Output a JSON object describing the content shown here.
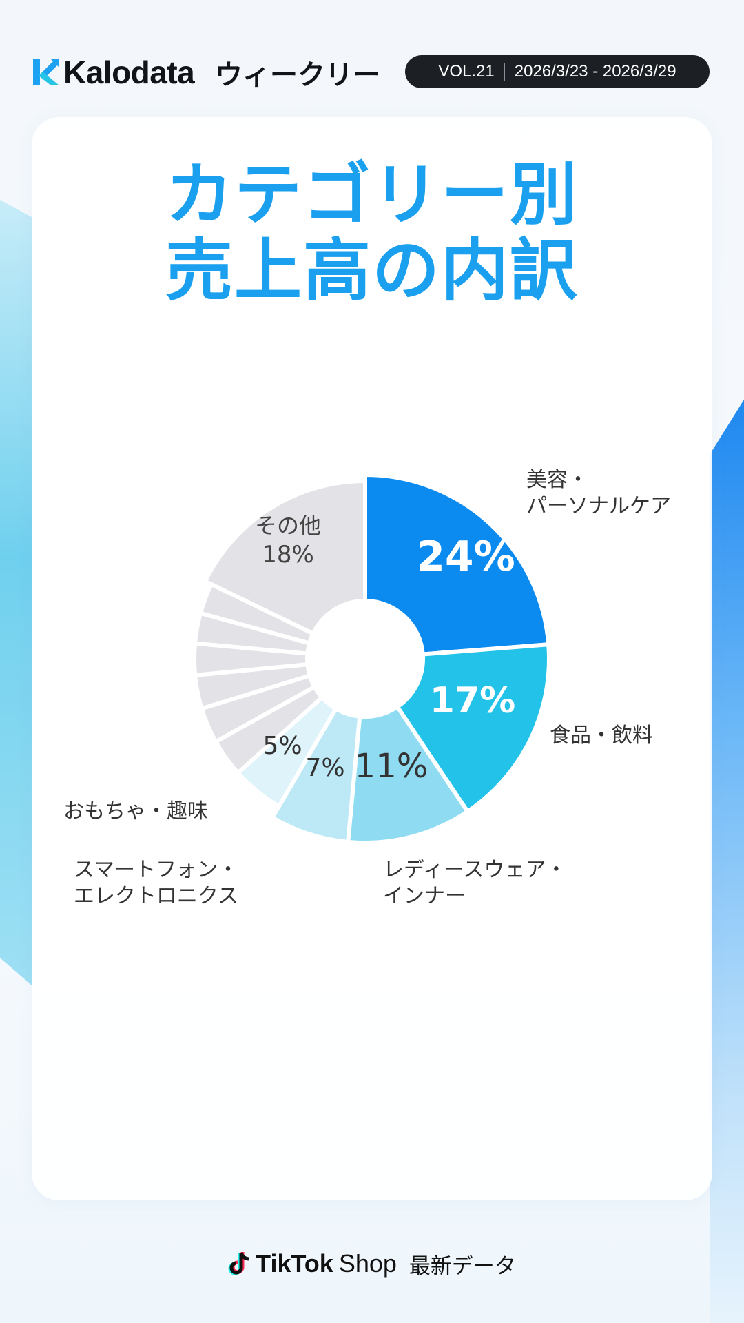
{
  "header": {
    "brand": "Kalodata",
    "weekly": "ウィークリー",
    "volume": "VOL.21",
    "date_range": "2026/3/23 - 2026/3/29"
  },
  "title": {
    "line1": "カテゴリー別",
    "line2": "売上高の内訳"
  },
  "footer": {
    "brand": "TikTok",
    "shop": "Shop",
    "tagline": "最新データ"
  },
  "colors": {
    "accent": "#1aa0ee",
    "beauty": "#0b8bef",
    "food": "#23c2e8",
    "ladies": "#8fdcf2",
    "smartphone": "#bde9f6",
    "toys": "#dff3fb",
    "others": "#e3e2e6"
  },
  "chart_data": {
    "type": "pie",
    "style": "donut",
    "slices": [
      {
        "name": "美容・パーソナルケア",
        "label_lines": [
          "美容・",
          "パーソナルケア"
        ],
        "value": 24,
        "value_label": "24%",
        "color": "#0b8bef",
        "text_color": "#ffffff"
      },
      {
        "name": "食品・飲料",
        "label_lines": [
          "食品・飲料"
        ],
        "value": 17,
        "value_label": "17%",
        "color": "#23c2e8",
        "text_color": "#ffffff"
      },
      {
        "name": "レディースウェア・インナー",
        "label_lines": [
          "レディースウェア・",
          "インナー"
        ],
        "value": 11,
        "value_label": "11%",
        "color": "#8fdcf2",
        "text_color": "#333333"
      },
      {
        "name": "スマートフォン・エレクトロニクス",
        "label_lines": [
          "スマートフォン・",
          "エレクトロニクス"
        ],
        "value": 7,
        "value_label": "7%",
        "color": "#bde9f6",
        "text_color": "#333333"
      },
      {
        "name": "おもちゃ・趣味",
        "label_lines": [
          "おもちゃ・趣味"
        ],
        "value": 5,
        "value_label": "5%",
        "color": "#dff3fb",
        "text_color": "#333333"
      },
      {
        "name": "",
        "label_lines": [],
        "value": 3.6,
        "value_label": "",
        "color": "#e3e2e6",
        "text_color": "#333333"
      },
      {
        "name": "",
        "label_lines": [],
        "value": 3.4,
        "value_label": "",
        "color": "#e3e2e6",
        "text_color": "#333333"
      },
      {
        "name": "",
        "label_lines": [],
        "value": 3.2,
        "value_label": "",
        "color": "#e3e2e6",
        "text_color": "#333333"
      },
      {
        "name": "",
        "label_lines": [],
        "value": 3.0,
        "value_label": "",
        "color": "#e3e2e6",
        "text_color": "#333333"
      },
      {
        "name": "",
        "label_lines": [],
        "value": 2.9,
        "value_label": "",
        "color": "#e3e2e6",
        "text_color": "#333333"
      },
      {
        "name": "",
        "label_lines": [],
        "value": 2.9,
        "value_label": "",
        "color": "#e3e2e6",
        "text_color": "#333333"
      },
      {
        "name": "その他",
        "label_lines": [
          "その他"
        ],
        "value": 18,
        "value_label": "18%",
        "color": "#e3e2e6",
        "text_color": "#444444"
      }
    ]
  }
}
